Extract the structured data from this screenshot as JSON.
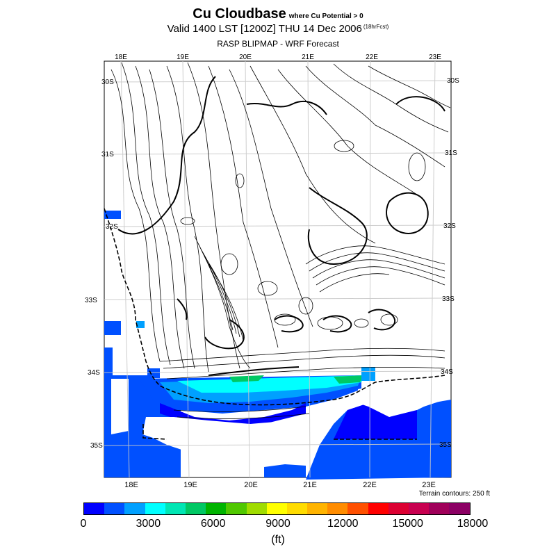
{
  "title": {
    "main": "Cu Cloudbase",
    "qualifier": "where Cu Potential > 0",
    "valid": "Valid 1400 LST [1200Z] THU 14 Dec 2006",
    "forecast_tag": "(18hrFcst)",
    "source": "RASP BLIPMAP - WRF Forecast"
  },
  "map": {
    "lon_labels_top": [
      "18E",
      "19E",
      "20E",
      "21E",
      "22E",
      "23E"
    ],
    "lon_labels_bottom": [
      "18E",
      "19E",
      "20E",
      "21E",
      "22E",
      "23E"
    ],
    "lat_labels_left": [
      "30S",
      "31S",
      "32S",
      "33S",
      "34S",
      "35S"
    ],
    "lat_labels_right": [
      "30S",
      "31S",
      "32S",
      "33S",
      "34S",
      "35S"
    ],
    "terrain_note": "Terrain contours: 250 ft"
  },
  "colorbar": {
    "colors": [
      "#0000ff",
      "#0050ff",
      "#00a0ff",
      "#00ffff",
      "#00e6b4",
      "#00c864",
      "#00b400",
      "#50c800",
      "#a0dc00",
      "#ffff00",
      "#ffdc00",
      "#ffb400",
      "#ff8c00",
      "#ff5000",
      "#ff0000",
      "#dc0032",
      "#c80050",
      "#a0005a",
      "#8c0064"
    ],
    "labels": [
      "0",
      "3000",
      "6000",
      "9000",
      "12000",
      "15000",
      "18000"
    ],
    "units": "(ft)"
  }
}
